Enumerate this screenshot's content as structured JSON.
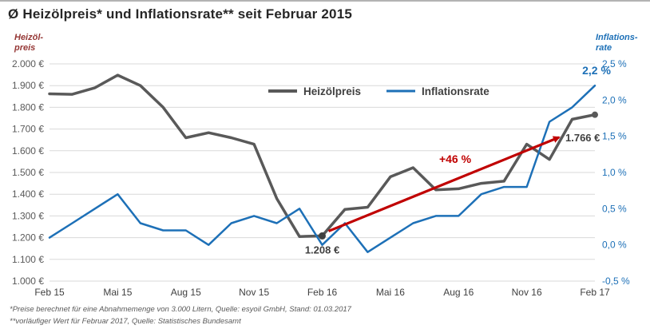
{
  "header": {
    "title": "Ø Heizölpreis* und Inflationsrate** seit Februar 2015"
  },
  "chart_data": {
    "type": "line",
    "title": "Ø Heizölpreis* und Inflationsrate** seit Februar 2015",
    "x_axis": {
      "tick_indices": [
        0,
        3,
        6,
        9,
        12,
        15,
        18,
        21,
        24
      ],
      "tick_labels": [
        "Feb 15",
        "Mai 15",
        "Aug 15",
        "Nov 15",
        "Feb 16",
        "Mai 16",
        "Aug 16",
        "Nov 16",
        "Feb 17"
      ]
    },
    "left_axis": {
      "label_lines": [
        "Heizöl-",
        "preis"
      ],
      "min": 1000,
      "max": 2000,
      "tick_labels": [
        "2.000 €",
        "1.900 €",
        "1.800 €",
        "1.700 €",
        "1.600 €",
        "1.500 €",
        "1.400 €",
        "1.300 €",
        "1.200 €",
        "1.100 €",
        "1.000 €"
      ],
      "title_color": "#953735",
      "tick_color": "#595959"
    },
    "right_axis": {
      "label_lines": [
        "Inflations-",
        "rate"
      ],
      "min": -0.5,
      "max": 2.5,
      "tick_labels": [
        "2,5 %",
        "2,0 %",
        "1,5 %",
        "1,0 %",
        "0,5 %",
        "0,0 %",
        "-0,5 %"
      ],
      "title_color": "#1d70b7",
      "tick_color": "#1d70b7"
    },
    "grid_color": "#d9d9d9",
    "series": [
      {
        "name": "Heizölpreis",
        "axis": "left",
        "color": "#595959",
        "stroke_width": 3.5,
        "values": [
          1862,
          1860,
          1890,
          1948,
          1900,
          1800,
          1660,
          1683,
          1660,
          1630,
          1380,
          1205,
          1208,
          1330,
          1340,
          1480,
          1522,
          1420,
          1425,
          1450,
          1460,
          1630,
          1560,
          1745,
          1766
        ]
      },
      {
        "name": "Inflationsrate",
        "axis": "right",
        "color": "#1d70b7",
        "stroke_width": 2.5,
        "values": [
          0.1,
          0.3,
          0.5,
          0.7,
          0.3,
          0.2,
          0.2,
          0.0,
          0.3,
          0.4,
          0.3,
          0.5,
          0.0,
          0.3,
          -0.1,
          0.1,
          0.3,
          0.4,
          0.4,
          0.7,
          0.8,
          0.8,
          1.7,
          1.9,
          2.2
        ]
      }
    ],
    "annotations": {
      "oil_low": {
        "text": "1.208 €",
        "color": "#404040",
        "index": 12
      },
      "oil_end": {
        "text": "1.766 €",
        "color": "#404040",
        "index": 24
      },
      "inflation_end": {
        "text": "2,2 %",
        "color": "#1d70b7",
        "index": 24
      },
      "increase_arrow": {
        "text": "+46 %",
        "color": "#c00000",
        "from_index": 12,
        "to_index": 24
      }
    },
    "legend": {
      "position": "top-center"
    }
  },
  "footnotes": [
    "*Preise berechnet für eine Abnahmemenge von 3.000 Litern, Quelle: esyoil GmbH, Stand: 01.03.2017",
    "**vorläufiger Wert für Februar 2017, Quelle: Statistisches Bundesamt"
  ]
}
